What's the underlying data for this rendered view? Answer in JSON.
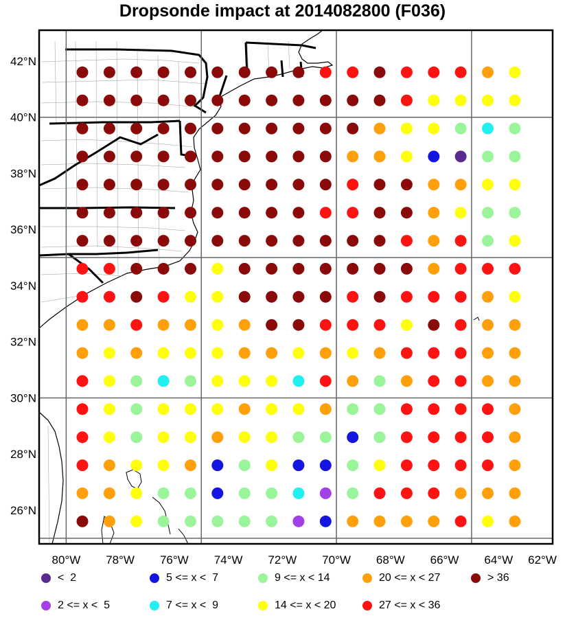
{
  "title": "Dropsonde impact at 2014082800 (F036)",
  "colors": {
    "lt2": "#5b2a8f",
    "2to5": "#a23fe6",
    "5to7": "#1515e0",
    "7to9": "#22f0f0",
    "9to14": "#9af59a",
    "14to20": "#ffff0a",
    "20to27": "#ffa00a",
    "27to36": "#ff1212",
    "gt36": "#8a0a0a"
  },
  "axes": {
    "lat_labels": [
      "42°N",
      "40°N",
      "38°N",
      "36°N",
      "34°N",
      "32°N",
      "30°N",
      "28°N",
      "26°N"
    ],
    "lon_labels": [
      "80°W",
      "78°W",
      "76°W",
      "74°W",
      "72°W",
      "70°W",
      "68°W",
      "66°W",
      "64°W",
      "62°W"
    ],
    "lat_range": [
      24.8,
      43.1
    ],
    "lon_range": [
      -81.0,
      -62.0
    ],
    "grid_lat": [
      25,
      30,
      35,
      40
    ],
    "grid_lon": [
      -80,
      -75,
      -70,
      -65
    ]
  },
  "grid": {
    "lat_centers": [
      41.6,
      40.6,
      39.6,
      38.6,
      37.6,
      36.6,
      35.6,
      34.6,
      33.6,
      32.6,
      31.6,
      30.6,
      29.6,
      28.6,
      27.6,
      26.6,
      25.6
    ],
    "lon_centers": [
      -79.4,
      -78.4,
      -77.4,
      -76.4,
      -75.4,
      -74.4,
      -73.4,
      -72.4,
      -71.4,
      -70.4,
      -69.4,
      -68.4,
      -67.4,
      -66.4,
      -65.4,
      -64.4,
      -63.4
    ],
    "cells": [
      [
        "gt36",
        "gt36",
        "gt36",
        "gt36",
        "gt36",
        "gt36",
        "gt36",
        "gt36",
        "gt36",
        "27to36",
        "27to36",
        "gt36",
        "27to36",
        "27to36",
        "27to36",
        "20to27",
        "14to20"
      ],
      [
        "gt36",
        "gt36",
        "gt36",
        "gt36",
        "gt36",
        "gt36",
        "gt36",
        "gt36",
        "gt36",
        "gt36",
        "gt36",
        "gt36",
        "27to36",
        "14to20",
        "14to20",
        "14to20",
        "14to20"
      ],
      [
        "gt36",
        "gt36",
        "gt36",
        "gt36",
        "gt36",
        "gt36",
        "gt36",
        "gt36",
        "gt36",
        "gt36",
        "gt36",
        "20to27",
        "14to20",
        "14to20",
        "9to14",
        "7to9",
        "9to14"
      ],
      [
        "gt36",
        "gt36",
        "gt36",
        "gt36",
        "gt36",
        "gt36",
        "gt36",
        "gt36",
        "gt36",
        "gt36",
        "20to27",
        "20to27",
        "14to20",
        "5to7",
        "lt2",
        "9to14",
        "9to14"
      ],
      [
        "gt36",
        "gt36",
        "gt36",
        "gt36",
        "gt36",
        "gt36",
        "gt36",
        "gt36",
        "gt36",
        "gt36",
        "27to36",
        "gt36",
        "gt36",
        "20to27",
        "20to27",
        "14to20",
        "14to20"
      ],
      [
        "gt36",
        "gt36",
        "gt36",
        "gt36",
        "gt36",
        "gt36",
        "gt36",
        "gt36",
        "gt36",
        "27to36",
        "27to36",
        "gt36",
        "gt36",
        "20to27",
        "14to20",
        "9to14",
        "9to14"
      ],
      [
        "gt36",
        "gt36",
        "gt36",
        "gt36",
        "gt36",
        "gt36",
        "gt36",
        "gt36",
        "gt36",
        "gt36",
        "gt36",
        "gt36",
        "27to36",
        "20to27",
        "27to36",
        "9to14",
        "14to20"
      ],
      [
        "27to36",
        "27to36",
        "gt36",
        "gt36",
        "gt36",
        "14to20",
        "gt36",
        "gt36",
        "gt36",
        "gt36",
        "gt36",
        "gt36",
        "gt36",
        "20to27",
        "27to36",
        "27to36",
        "27to36"
      ],
      [
        "27to36",
        "27to36",
        "gt36",
        "27to36",
        "14to20",
        "14to20",
        "gt36",
        "gt36",
        "gt36",
        "gt36",
        "27to36",
        "gt36",
        "27to36",
        "27to36",
        "27to36",
        "20to27",
        "14to20"
      ],
      [
        "20to27",
        "20to27",
        "27to36",
        "20to27",
        "20to27",
        "14to20",
        "20to27",
        "gt36",
        "gt36",
        "27to36",
        "27to36",
        "27to36",
        "14to20",
        "gt36",
        "27to36",
        "20to27",
        "20to27"
      ],
      [
        "20to27",
        "14to20",
        "20to27",
        "14to20",
        "14to20",
        "14to20",
        "20to27",
        "20to27",
        "14to20",
        "20to27",
        "14to20",
        "20to27",
        "27to36",
        "27to36",
        "27to36",
        "20to27",
        "20to27"
      ],
      [
        "27to36",
        "14to20",
        "9to14",
        "7to9",
        "9to14",
        "14to20",
        "14to20",
        "14to20",
        "7to9",
        "27to36",
        "20to27",
        "9to14",
        "20to27",
        "27to36",
        "27to36",
        "20to27",
        "20to27"
      ],
      [
        "27to36",
        "14to20",
        "9to14",
        "14to20",
        "14to20",
        "14to20",
        "20to27",
        "14to20",
        "14to20",
        "20to27",
        "9to14",
        "9to14",
        "27to36",
        "27to36",
        "27to36",
        "27to36",
        "20to27"
      ],
      [
        "27to36",
        "14to20",
        "9to14",
        "14to20",
        "14to20",
        "20to27",
        "14to20",
        "14to20",
        "9to14",
        "9to14",
        "5to7",
        "9to14",
        "27to36",
        "27to36",
        "27to36",
        "27to36",
        "20to27"
      ],
      [
        "27to36",
        "20to27",
        "14to20",
        "14to20",
        "20to27",
        "5to7",
        "9to14",
        "14to20",
        "5to7",
        "5to7",
        "9to14",
        "14to20",
        "27to36",
        "27to36",
        "27to36",
        "27to36",
        "20to27"
      ],
      [
        "20to27",
        "20to27",
        "14to20",
        "9to14",
        "9to14",
        "5to7",
        "9to14",
        "9to14",
        "7to9",
        "2to5",
        "9to14",
        "27to36",
        "27to36",
        "27to36",
        "20to27",
        "20to27",
        "20to27"
      ],
      [
        "gt36",
        "20to27",
        "14to20",
        "9to14",
        "9to14",
        "9to14",
        "9to14",
        "9to14",
        "2to5",
        "5to7",
        "20to27",
        "20to27",
        "20to27",
        "20to27",
        "27to36",
        "14to20",
        "20to27"
      ]
    ]
  },
  "legend": [
    {
      "key": "lt2",
      "label": "<  2"
    },
    {
      "key": "5to7",
      "label": "5 <= x <  7"
    },
    {
      "key": "9to14",
      "label": "9 <= x < 14"
    },
    {
      "key": "20to27",
      "label": "20 <= x < 27"
    },
    {
      "key": "gt36",
      "label": "> 36"
    },
    {
      "key": "2to5",
      "label": "2 <= x <  5"
    },
    {
      "key": "7to9",
      "label": "7 <= x <  9"
    },
    {
      "key": "14to20",
      "label": "14 <= x < 20"
    },
    {
      "key": "27to36",
      "label": "27 <= x < 36"
    }
  ]
}
